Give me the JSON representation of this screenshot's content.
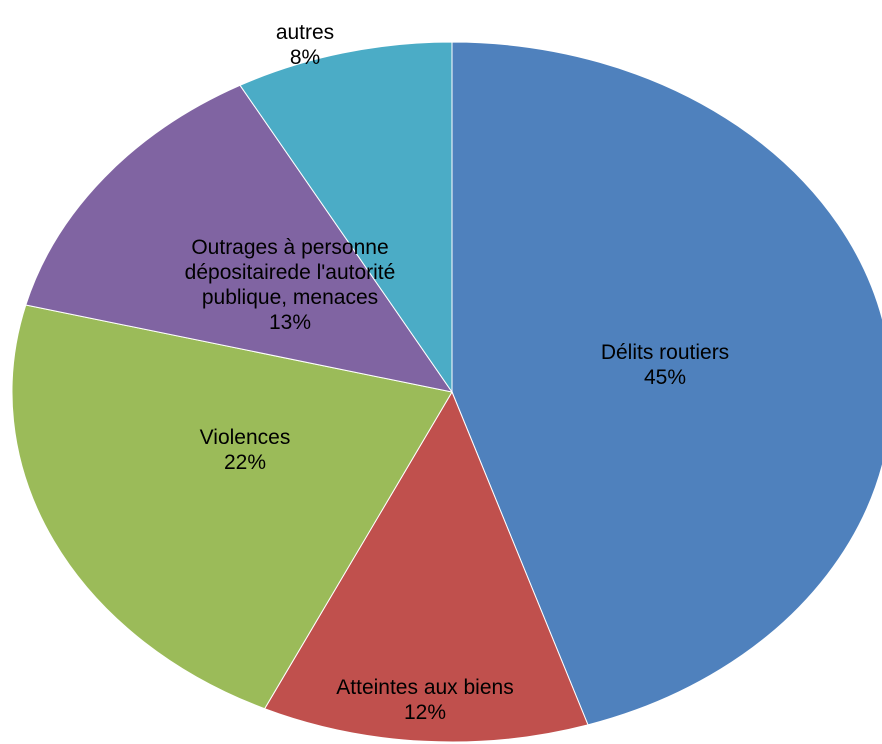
{
  "chart_data": {
    "type": "pie",
    "categories": [
      "Délits routiers",
      "Atteintes aux biens",
      "Violences",
      "Outrages à personne dépositairede l'autorité publique, menaces",
      "autres"
    ],
    "values": [
      45,
      12,
      22,
      13,
      8
    ],
    "value_labels": [
      "45%",
      "12%",
      "22%",
      "13%",
      "8%"
    ],
    "colors": [
      "#4f81bd",
      "#c0504d",
      "#9bbb59",
      "#8064a2",
      "#4bacc6"
    ]
  }
}
